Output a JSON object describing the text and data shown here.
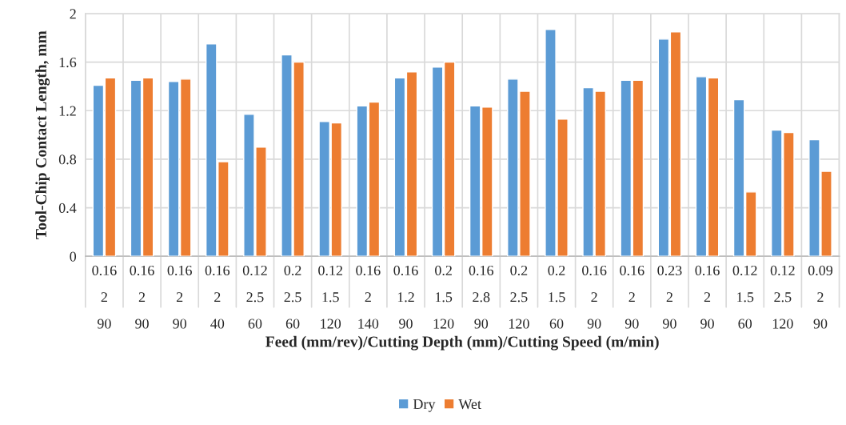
{
  "chart_data": {
    "type": "bar",
    "xlabel": "Feed (mm/rev)/Cutting Depth (mm)/Cutting Speed (m/min)",
    "ylabel": "Tool-Chip Contact Length, mm",
    "categories": [
      "0.16\n2\n90",
      "0.16\n2\n90",
      "0.16\n2\n90",
      "0.16\n2\n40",
      "0.12\n2.5\n60",
      "0.2\n2.5\n60",
      "0.12\n1.5\n120",
      "0.16\n2\n140",
      "0.16\n1.2\n90",
      "0.2\n1.5\n120",
      "0.16\n2.8\n90",
      "0.2\n2.5\n120",
      "0.2\n1.5\n60",
      "0.16\n2\n90",
      "0.16\n2\n90",
      "0.23\n2\n90",
      "0.16\n2\n90",
      "0.12\n1.5\n60",
      "0.12\n2.5\n120",
      "0.09\n2\n90"
    ],
    "series": [
      {
        "name": "Dry",
        "color": "#5b9bd5",
        "values": [
          1.41,
          1.45,
          1.44,
          1.75,
          1.17,
          1.66,
          1.11,
          1.24,
          1.47,
          1.56,
          1.24,
          1.46,
          1.87,
          1.39,
          1.45,
          1.79,
          1.48,
          1.29,
          1.04,
          0.96
        ]
      },
      {
        "name": "Wet",
        "color": "#ed7d31",
        "values": [
          1.47,
          1.47,
          1.46,
          0.78,
          0.9,
          1.6,
          1.1,
          1.27,
          1.52,
          1.6,
          1.23,
          1.36,
          1.13,
          1.36,
          1.45,
          1.85,
          1.47,
          0.53,
          1.02,
          0.7
        ]
      }
    ],
    "ylim": [
      0,
      2
    ],
    "yticks": [
      0,
      0.4,
      0.8,
      1.2,
      1.6,
      2
    ],
    "grid": true,
    "legend": "bottom"
  }
}
